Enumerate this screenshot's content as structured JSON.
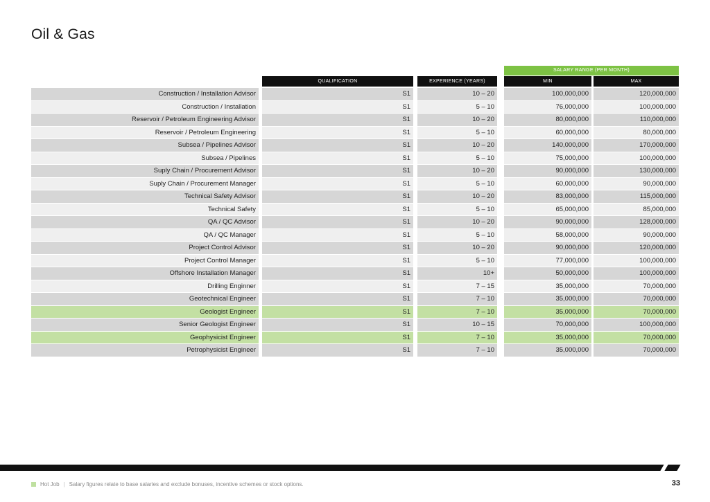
{
  "page": {
    "title": "Oil & Gas",
    "page_number": "33"
  },
  "headers": {
    "salary_range": "SALARY RANGE (PER MONTH)",
    "qualification": "QUALIFICATION",
    "experience": "EXPERIENCE (YEARS)",
    "min": "MIN",
    "max": "MAX"
  },
  "rows": [
    {
      "role": "Construction / Installation Advisor",
      "qualification": "S1",
      "experience": "10 – 20",
      "min": "100,000,000",
      "max": "120,000,000"
    },
    {
      "role": "Construction / Installation",
      "qualification": "S1",
      "experience": "5 – 10",
      "min": "76,000,000",
      "max": "100,000,000"
    },
    {
      "role": "Reservoir / Petroleum Engineering Advisor",
      "qualification": "S1",
      "experience": "10 – 20",
      "min": "80,000,000",
      "max": "110,000,000"
    },
    {
      "role": "Reservoir / Petroleum Engineering",
      "qualification": "S1",
      "experience": "5 – 10",
      "min": "60,000,000",
      "max": "80,000,000"
    },
    {
      "role": "Subsea / Pipelines Advisor",
      "qualification": "S1",
      "experience": "10 – 20",
      "min": "140,000,000",
      "max": "170,000,000"
    },
    {
      "role": "Subsea / Pipelines",
      "qualification": "S1",
      "experience": "5 – 10",
      "min": "75,000,000",
      "max": "100,000,000"
    },
    {
      "role": "Suply Chain / Procurement Advisor",
      "qualification": "S1",
      "experience": "10 – 20",
      "min": "90,000,000",
      "max": "130,000,000"
    },
    {
      "role": "Suply Chain / Procurement Manager",
      "qualification": "S1",
      "experience": "5 – 10",
      "min": "60,000,000",
      "max": "90,000,000"
    },
    {
      "role": "Technical Safety Advisor",
      "qualification": "S1",
      "experience": "10 – 20",
      "min": "83,000,000",
      "max": "115,000,000"
    },
    {
      "role": "Technical Safety",
      "qualification": "S1",
      "experience": "5 – 10",
      "min": "65,000,000",
      "max": "85,000,000"
    },
    {
      "role": "QA / QC Advisor",
      "qualification": "S1",
      "experience": "10 – 20",
      "min": "90,000,000",
      "max": "128,000,000"
    },
    {
      "role": "QA / QC Manager",
      "qualification": "S1",
      "experience": "5 – 10",
      "min": "58,000,000",
      "max": "90,000,000"
    },
    {
      "role": "Project Control Advisor",
      "qualification": "S1",
      "experience": "10 – 20",
      "min": "90,000,000",
      "max": "120,000,000"
    },
    {
      "role": "Project Control Manager",
      "qualification": "S1",
      "experience": "5 – 10",
      "min": "77,000,000",
      "max": "100,000,000"
    },
    {
      "role": "Offshore Installation Manager",
      "qualification": "S1",
      "experience": "10+",
      "min": "50,000,000",
      "max": "100,000,000"
    },
    {
      "role": "Drilling Enginner",
      "qualification": "S1",
      "experience": "7 – 15",
      "min": "35,000,000",
      "max": "70,000,000"
    },
    {
      "role": "Geotechnical Engineer",
      "qualification": "S1",
      "experience": "7 – 10",
      "min": "35,000,000",
      "max": "70,000,000"
    },
    {
      "role": "Geologist Engineer",
      "qualification": "S1",
      "experience": "7 – 10",
      "min": "35,000,000",
      "max": "70,000,000",
      "hot": true
    },
    {
      "role": "Senior Geologist Engineer",
      "qualification": "S1",
      "experience": "10 – 15",
      "min": "70,000,000",
      "max": "100,000,000"
    },
    {
      "role": "Geophysicist Engineer",
      "qualification": "S1",
      "experience": "7 – 10",
      "min": "35,000,000",
      "max": "70,000,000",
      "hot": true
    },
    {
      "role": "Petrophysicist Engineer",
      "qualification": "S1",
      "experience": "7 – 10",
      "min": "35,000,000",
      "max": "70,000,000"
    }
  ],
  "footer": {
    "hot_job_label": "Hot Job",
    "separator": "|",
    "note": "Salary figures relate to base salaries and exclude bonuses, incentive schemes or stock options."
  },
  "colors": {
    "accent_green": "#7dc244",
    "highlight_green": "#c3e0a3",
    "header_black": "#111111"
  }
}
